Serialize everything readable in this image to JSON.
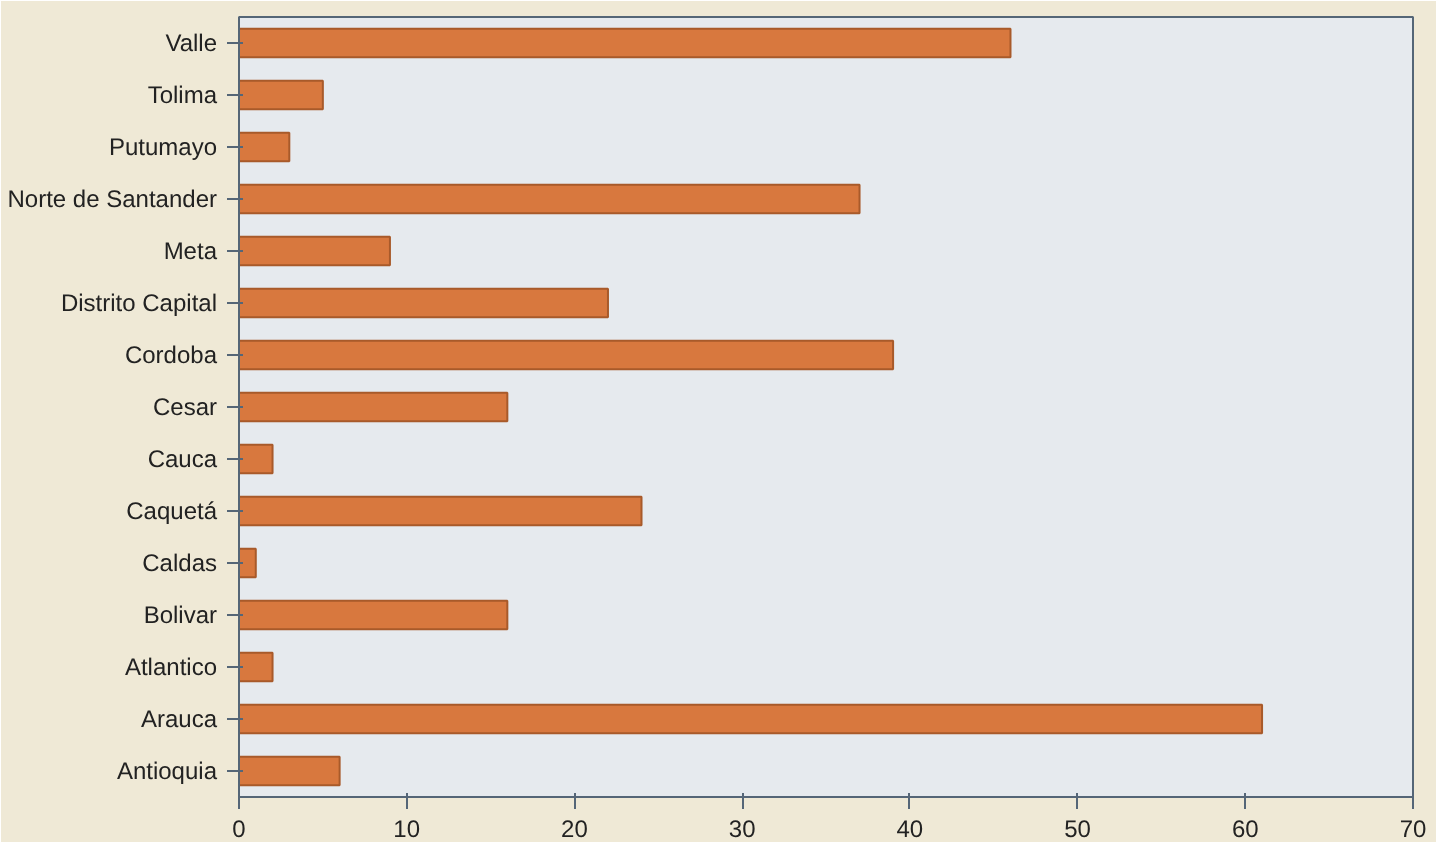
{
  "chart_data": {
    "type": "bar",
    "orientation": "horizontal",
    "categories": [
      "Valle",
      "Tolima",
      "Putumayo",
      "Norte de Santander",
      "Meta",
      "Distrito Capital",
      "Cordoba",
      "Cesar",
      "Cauca",
      "Caquetá",
      "Caldas",
      "Bolivar",
      "Atlantico",
      "Arauca",
      "Antioquia"
    ],
    "values": [
      46,
      5,
      3,
      37,
      9,
      22,
      39,
      16,
      2,
      24,
      1,
      16,
      2,
      61,
      6
    ],
    "color": "#d8783e",
    "xlim": [
      0,
      70
    ],
    "xticks": [
      0,
      10,
      20,
      30,
      40,
      50,
      60,
      70
    ],
    "grid": false
  }
}
